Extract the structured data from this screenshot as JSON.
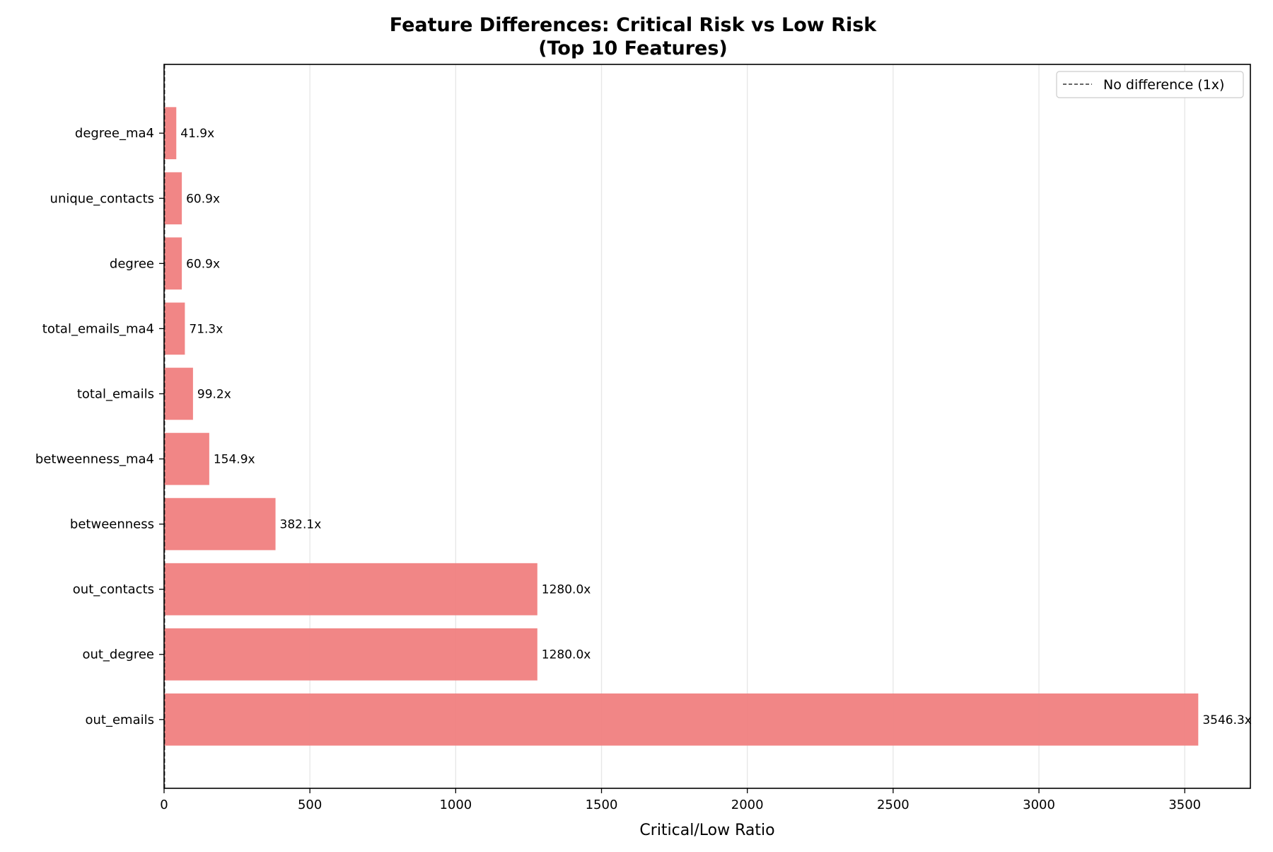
{
  "chart_data": {
    "type": "bar",
    "orientation": "horizontal",
    "title_line1": "Feature Differences: Critical Risk vs Low Risk",
    "title_line2": "(Top 10 Features)",
    "xlabel": "Critical/Low Ratio",
    "ylabel": "",
    "xlim": [
      0,
      3725
    ],
    "xticks": [
      0,
      500,
      1000,
      1500,
      2000,
      2500,
      3000,
      3500
    ],
    "grid": "vertical",
    "legend": {
      "placement": "top-right",
      "entries": [
        {
          "label": "No difference (1x)",
          "style": "dashed",
          "color": "#666666"
        }
      ]
    },
    "reference_line": {
      "x": 1
    },
    "bar_color": "#f08080",
    "categories": [
      "out_emails",
      "out_degree",
      "out_contacts",
      "betweenness",
      "betweenness_ma4",
      "total_emails",
      "total_emails_ma4",
      "degree",
      "unique_contacts",
      "degree_ma4"
    ],
    "values": [
      3546.3,
      1280.0,
      1280.0,
      382.1,
      154.9,
      99.2,
      71.3,
      60.9,
      60.9,
      41.9
    ],
    "value_labels": [
      "3546.3x",
      "1280.0x",
      "1280.0x",
      "382.1x",
      "154.9x",
      "99.2x",
      "71.3x",
      "60.9x",
      "60.9x",
      "41.9x"
    ]
  }
}
